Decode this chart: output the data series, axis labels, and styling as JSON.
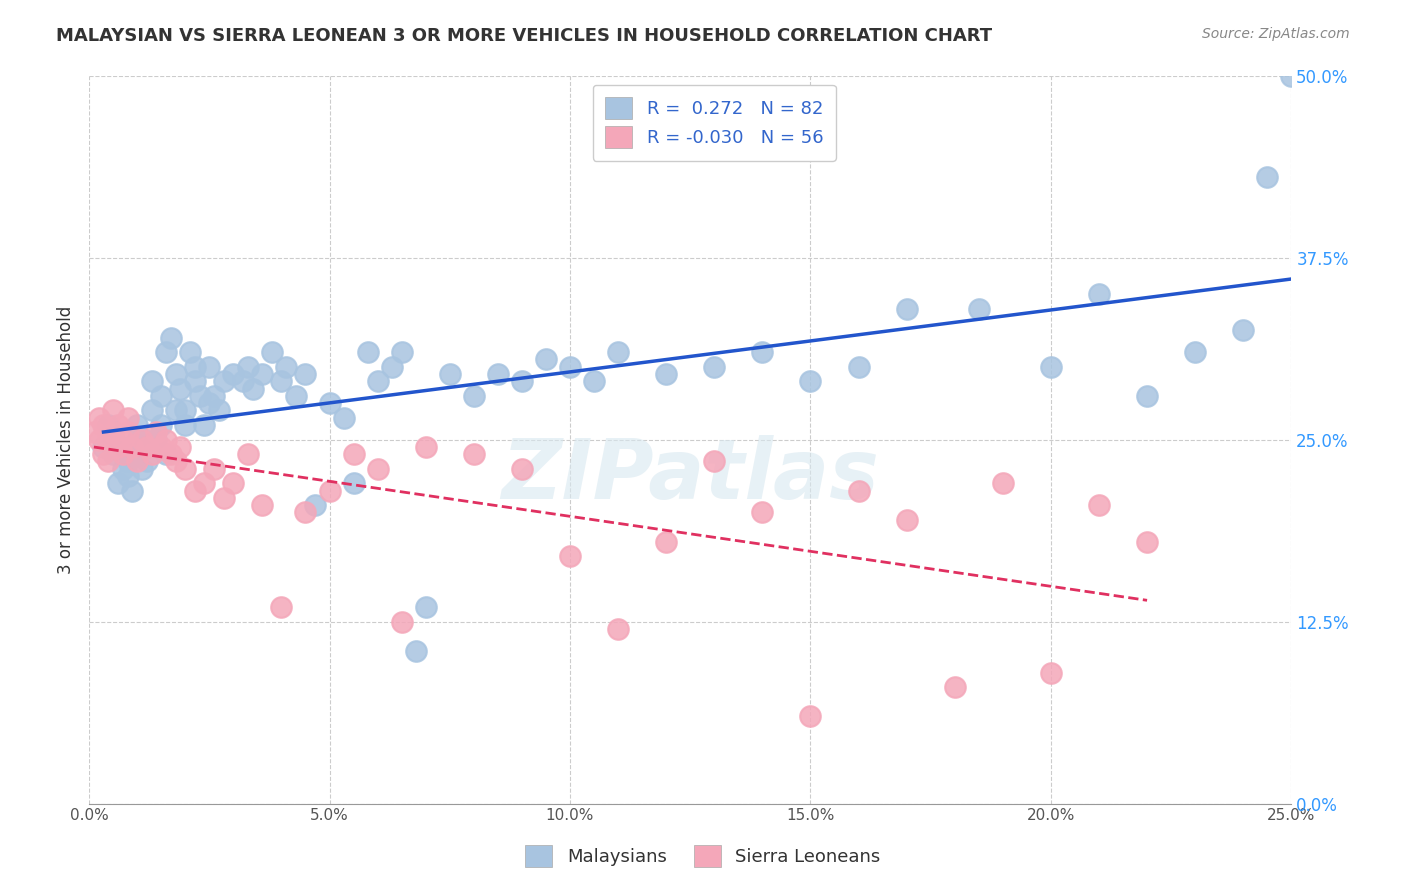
{
  "title": "MALAYSIAN VS SIERRA LEONEAN 3 OR MORE VEHICLES IN HOUSEHOLD CORRELATION CHART",
  "source": "Source: ZipAtlas.com",
  "ylabel": "3 or more Vehicles in Household",
  "x_tick_labels": [
    "0.0%",
    "5.0%",
    "10.0%",
    "15.0%",
    "20.0%",
    "25.0%"
  ],
  "x_tick_values": [
    0.0,
    0.05,
    0.1,
    0.15,
    0.2,
    0.25
  ],
  "y_tick_labels": [
    "0.0%",
    "12.5%",
    "25.0%",
    "37.5%",
    "50.0%"
  ],
  "y_tick_values": [
    0.0,
    0.125,
    0.25,
    0.375,
    0.5
  ],
  "xlim": [
    0.0,
    0.25
  ],
  "ylim": [
    0.0,
    0.5
  ],
  "legend_labels": [
    "Malaysians",
    "Sierra Leoneans"
  ],
  "legend_R": [
    "0.272",
    "-0.030"
  ],
  "legend_N": [
    "82",
    "56"
  ],
  "malaysian_color": "#a8c4e0",
  "sierralonean_color": "#f4a7b9",
  "trend_malaysian_color": "#2255cc",
  "trend_sierralonean_color": "#e03060",
  "background_color": "#ffffff",
  "watermark": "ZIPatlas",
  "malaysian_x": [
    0.003,
    0.004,
    0.005,
    0.005,
    0.006,
    0.007,
    0.007,
    0.008,
    0.008,
    0.009,
    0.01,
    0.01,
    0.01,
    0.011,
    0.011,
    0.012,
    0.012,
    0.013,
    0.013,
    0.014,
    0.015,
    0.015,
    0.016,
    0.016,
    0.017,
    0.018,
    0.018,
    0.019,
    0.02,
    0.02,
    0.021,
    0.022,
    0.022,
    0.023,
    0.024,
    0.025,
    0.025,
    0.026,
    0.027,
    0.028,
    0.03,
    0.032,
    0.033,
    0.034,
    0.036,
    0.038,
    0.04,
    0.041,
    0.043,
    0.045,
    0.047,
    0.05,
    0.053,
    0.055,
    0.058,
    0.06,
    0.063,
    0.065,
    0.068,
    0.07,
    0.075,
    0.08,
    0.085,
    0.09,
    0.095,
    0.1,
    0.105,
    0.11,
    0.12,
    0.13,
    0.14,
    0.15,
    0.16,
    0.17,
    0.185,
    0.2,
    0.21,
    0.22,
    0.23,
    0.24,
    0.245,
    0.25
  ],
  "malaysian_y": [
    0.245,
    0.26,
    0.24,
    0.255,
    0.22,
    0.23,
    0.245,
    0.225,
    0.235,
    0.215,
    0.25,
    0.24,
    0.26,
    0.23,
    0.245,
    0.25,
    0.235,
    0.27,
    0.29,
    0.25,
    0.26,
    0.28,
    0.24,
    0.31,
    0.32,
    0.295,
    0.27,
    0.285,
    0.26,
    0.27,
    0.31,
    0.29,
    0.3,
    0.28,
    0.26,
    0.275,
    0.3,
    0.28,
    0.27,
    0.29,
    0.295,
    0.29,
    0.3,
    0.285,
    0.295,
    0.31,
    0.29,
    0.3,
    0.28,
    0.295,
    0.205,
    0.275,
    0.265,
    0.22,
    0.31,
    0.29,
    0.3,
    0.31,
    0.105,
    0.135,
    0.295,
    0.28,
    0.295,
    0.29,
    0.305,
    0.3,
    0.29,
    0.31,
    0.295,
    0.3,
    0.31,
    0.29,
    0.3,
    0.34,
    0.34,
    0.3,
    0.35,
    0.28,
    0.31,
    0.325,
    0.43,
    0.5
  ],
  "sierralonean_x": [
    0.001,
    0.002,
    0.002,
    0.003,
    0.003,
    0.004,
    0.004,
    0.005,
    0.005,
    0.006,
    0.006,
    0.007,
    0.007,
    0.008,
    0.008,
    0.009,
    0.01,
    0.011,
    0.012,
    0.013,
    0.014,
    0.015,
    0.016,
    0.017,
    0.018,
    0.019,
    0.02,
    0.022,
    0.024,
    0.026,
    0.028,
    0.03,
    0.033,
    0.036,
    0.04,
    0.045,
    0.05,
    0.055,
    0.06,
    0.065,
    0.07,
    0.08,
    0.09,
    0.1,
    0.11,
    0.12,
    0.13,
    0.14,
    0.15,
    0.16,
    0.17,
    0.18,
    0.19,
    0.2,
    0.21,
    0.22
  ],
  "sierralonean_y": [
    0.255,
    0.25,
    0.265,
    0.24,
    0.26,
    0.235,
    0.25,
    0.27,
    0.255,
    0.245,
    0.26,
    0.25,
    0.24,
    0.255,
    0.265,
    0.245,
    0.235,
    0.25,
    0.245,
    0.24,
    0.255,
    0.245,
    0.25,
    0.24,
    0.235,
    0.245,
    0.23,
    0.215,
    0.22,
    0.23,
    0.21,
    0.22,
    0.24,
    0.205,
    0.135,
    0.2,
    0.215,
    0.24,
    0.23,
    0.125,
    0.245,
    0.24,
    0.23,
    0.17,
    0.12,
    0.18,
    0.235,
    0.2,
    0.06,
    0.215,
    0.195,
    0.08,
    0.22,
    0.09,
    0.205,
    0.18
  ]
}
